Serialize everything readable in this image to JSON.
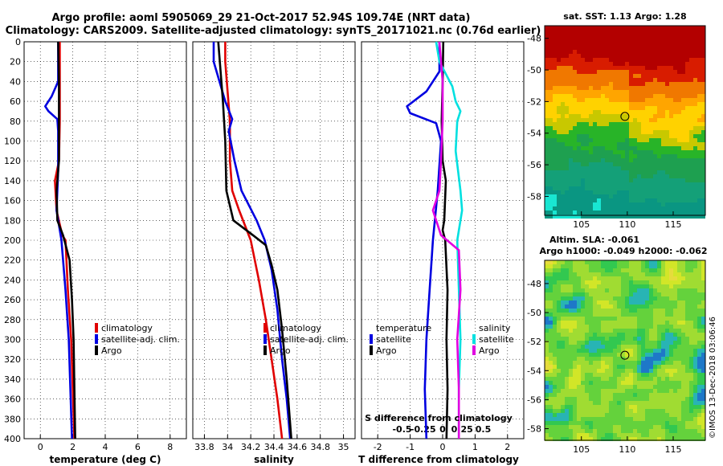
{
  "header": {
    "title_line1": "Argo profile: aoml 5905069_29 21-Oct-2017 52.94S 109.74E (NRT data)",
    "title_line2": "Climatology: CARS2009. Satellite-adjusted climatology: synTS_20171021.nc (0.76d earlier)"
  },
  "colors": {
    "climatology": "#e00000",
    "satellite": "#0000e0",
    "argo": "#000000",
    "sat_salinity": "#00e0e0",
    "argo_salinity": "#e000e0"
  },
  "chart_data": [
    {
      "type": "line",
      "id": "temperature",
      "xlabel": "temperature (deg C)",
      "xlim": [
        -1,
        9
      ],
      "ylim": [
        400,
        0
      ],
      "xticks": [
        "0",
        "2",
        "4",
        "6",
        "8"
      ],
      "xtick_values": [
        0,
        2,
        4,
        6,
        8
      ],
      "yticks": [
        "0",
        "20",
        "40",
        "60",
        "80",
        "100",
        "120",
        "140",
        "160",
        "180",
        "200",
        "220",
        "240",
        "260",
        "280",
        "300",
        "320",
        "340",
        "360",
        "380",
        "400"
      ],
      "legend": [
        "climatology",
        "satellite-adj. clim.",
        "Argo"
      ],
      "series": [
        {
          "name": "climatology",
          "points": [
            [
              1.2,
              0
            ],
            [
              1.2,
              40
            ],
            [
              1.2,
              80
            ],
            [
              1.15,
              120
            ],
            [
              0.9,
              140
            ],
            [
              1.0,
              170
            ],
            [
              1.35,
              195
            ],
            [
              1.55,
              200
            ],
            [
              1.7,
              250
            ],
            [
              1.9,
              300
            ],
            [
              2.0,
              350
            ],
            [
              2.1,
              400
            ]
          ]
        },
        {
          "name": "satellite-adj. clim.",
          "points": [
            [
              1.1,
              0
            ],
            [
              1.1,
              40
            ],
            [
              0.7,
              55
            ],
            [
              0.3,
              65
            ],
            [
              0.5,
              70
            ],
            [
              1.05,
              78
            ],
            [
              1.1,
              90
            ],
            [
              1.1,
              130
            ],
            [
              1.0,
              170
            ],
            [
              1.3,
              200
            ],
            [
              1.55,
              250
            ],
            [
              1.75,
              300
            ],
            [
              1.85,
              350
            ],
            [
              1.95,
              400
            ]
          ]
        },
        {
          "name": "Argo",
          "points": [
            [
              1.1,
              0
            ],
            [
              1.15,
              40
            ],
            [
              1.15,
              80
            ],
            [
              1.15,
              120
            ],
            [
              1.0,
              150
            ],
            [
              1.05,
              180
            ],
            [
              1.4,
              195
            ],
            [
              1.8,
              220
            ],
            [
              1.95,
              260
            ],
            [
              2.05,
              300
            ],
            [
              2.1,
              350
            ],
            [
              2.15,
              400
            ]
          ]
        }
      ]
    },
    {
      "type": "line",
      "id": "salinity",
      "xlabel": "salinity",
      "xlim": [
        33.7,
        35.1
      ],
      "ylim": [
        400,
        0
      ],
      "xticks": [
        "33.8",
        "34",
        "34.2",
        "34.4",
        "34.6",
        "34.8",
        "35"
      ],
      "xtick_values": [
        33.8,
        34.0,
        34.2,
        34.4,
        34.6,
        34.8,
        35.0
      ],
      "yticks": [],
      "legend": [
        "climatology",
        "satellite-adj. clim.",
        "Argo"
      ],
      "series": [
        {
          "name": "climatology",
          "points": [
            [
              33.98,
              0
            ],
            [
              33.98,
              20
            ],
            [
              34.0,
              50
            ],
            [
              34.02,
              80
            ],
            [
              34.02,
              120
            ],
            [
              34.04,
              150
            ],
            [
              34.1,
              170
            ],
            [
              34.2,
              200
            ],
            [
              34.27,
              240
            ],
            [
              34.33,
              280
            ],
            [
              34.38,
              320
            ],
            [
              34.43,
              360
            ],
            [
              34.47,
              400
            ]
          ]
        },
        {
          "name": "satellite-adj. clim.",
          "points": [
            [
              33.88,
              0
            ],
            [
              33.88,
              20
            ],
            [
              33.93,
              40
            ],
            [
              33.98,
              60
            ],
            [
              34.04,
              78
            ],
            [
              34.01,
              90
            ],
            [
              34.06,
              120
            ],
            [
              34.12,
              150
            ],
            [
              34.25,
              180
            ],
            [
              34.32,
              200
            ],
            [
              34.38,
              230
            ],
            [
              34.43,
              270
            ],
            [
              34.47,
              320
            ],
            [
              34.51,
              360
            ],
            [
              34.54,
              400
            ]
          ]
        },
        {
          "name": "Argo",
          "points": [
            [
              33.92,
              0
            ],
            [
              33.94,
              30
            ],
            [
              33.96,
              60
            ],
            [
              33.98,
              100
            ],
            [
              33.99,
              150
            ],
            [
              34.05,
              180
            ],
            [
              34.22,
              195
            ],
            [
              34.33,
              205
            ],
            [
              34.38,
              225
            ],
            [
              34.43,
              250
            ],
            [
              34.47,
              290
            ],
            [
              34.51,
              340
            ],
            [
              34.55,
              400
            ]
          ]
        }
      ]
    },
    {
      "type": "line",
      "id": "difference",
      "xlabel": "T difference from climatology",
      "xlabel_top": "S difference from climatology",
      "xlim": [
        -2.5,
        2.5
      ],
      "ylim": [
        400,
        0
      ],
      "xticks": [
        "-2",
        "-1",
        "0",
        "1",
        "2"
      ],
      "xtick_values": [
        -2,
        -1,
        0,
        1,
        2
      ],
      "sticks": [
        "-0.5",
        "-0.25",
        "0",
        "0.25",
        "0.5"
      ],
      "stick_values": [
        -1.25,
        -0.6,
        0,
        0.6,
        1.25
      ],
      "legend_temperature": [
        "temperature",
        "satellite",
        "Argo"
      ],
      "legend_salinity": [
        "salinity",
        "satellite",
        "Argo"
      ],
      "series": [
        {
          "name": "T satellite",
          "points": [
            [
              -0.1,
              0
            ],
            [
              -0.1,
              30
            ],
            [
              -0.5,
              50
            ],
            [
              -1.1,
              65
            ],
            [
              -1.0,
              72
            ],
            [
              -0.2,
              82
            ],
            [
              -0.05,
              100
            ],
            [
              -0.15,
              150
            ],
            [
              -0.3,
              200
            ],
            [
              -0.4,
              250
            ],
            [
              -0.5,
              300
            ],
            [
              -0.55,
              350
            ],
            [
              -0.5,
              400
            ]
          ]
        },
        {
          "name": "T Argo",
          "points": [
            [
              0.02,
              0
            ],
            [
              0.0,
              40
            ],
            [
              -0.03,
              80
            ],
            [
              0.0,
              120
            ],
            [
              0.1,
              140
            ],
            [
              0.05,
              180
            ],
            [
              0.0,
              190
            ],
            [
              0.08,
              200
            ],
            [
              0.15,
              250
            ],
            [
              0.12,
              300
            ],
            [
              0.15,
              350
            ],
            [
              0.12,
              400
            ]
          ]
        },
        {
          "name": "S satellite",
          "points": [
            [
              -0.2,
              0
            ],
            [
              -0.1,
              20
            ],
            [
              0.3,
              45
            ],
            [
              0.4,
              60
            ],
            [
              0.55,
              70
            ],
            [
              0.45,
              80
            ],
            [
              0.4,
              110
            ],
            [
              0.55,
              150
            ],
            [
              0.6,
              170
            ],
            [
              0.45,
              200
            ],
            [
              0.5,
              250
            ],
            [
              0.55,
              300
            ],
            [
              0.5,
              350
            ],
            [
              0.5,
              400
            ]
          ]
        },
        {
          "name": "S Argo",
          "points": [
            [
              -0.1,
              0
            ],
            [
              0.0,
              40
            ],
            [
              0.0,
              80
            ],
            [
              -0.05,
              120
            ],
            [
              -0.1,
              150
            ],
            [
              -0.3,
              170
            ],
            [
              -0.05,
              195
            ],
            [
              0.5,
              210
            ],
            [
              0.55,
              250
            ],
            [
              0.45,
              300
            ],
            [
              0.5,
              350
            ],
            [
              0.5,
              400
            ]
          ]
        }
      ]
    },
    {
      "type": "heatmap",
      "id": "sst-map",
      "title": "sat. SST: 1.13 Argo: 1.28",
      "xticks": [
        "105",
        "110",
        "115"
      ],
      "xtick_values": [
        105,
        110,
        115
      ],
      "xlim": [
        101,
        118.5
      ],
      "yticks": [
        "-48",
        "-50",
        "-52",
        "-54",
        "-56",
        "-58"
      ],
      "ytick_values": [
        -48,
        -50,
        -52,
        -54,
        -56,
        -58
      ],
      "ylim": [
        -59.2,
        -47.2
      ],
      "marker": [
        109.74,
        -52.94
      ]
    },
    {
      "type": "heatmap",
      "id": "sla-map",
      "title_line1": "Altim. SLA: -0.061",
      "title_line2": "Argo h1000: -0.049 h2000: -0.062",
      "xticks": [
        "105",
        "110",
        "115"
      ],
      "xtick_values": [
        105,
        110,
        115
      ],
      "xlim": [
        101,
        118.5
      ],
      "yticks": [
        "-48",
        "-50",
        "-52",
        "-54",
        "-56",
        "-58"
      ],
      "ytick_values": [
        -48,
        -50,
        -52,
        -54,
        -56,
        -58
      ],
      "ylim": [
        -58.8,
        -46.4
      ],
      "marker": [
        109.74,
        -52.94
      ]
    }
  ],
  "credit": "©IMOS 13-Dec-2018 03:06:46"
}
